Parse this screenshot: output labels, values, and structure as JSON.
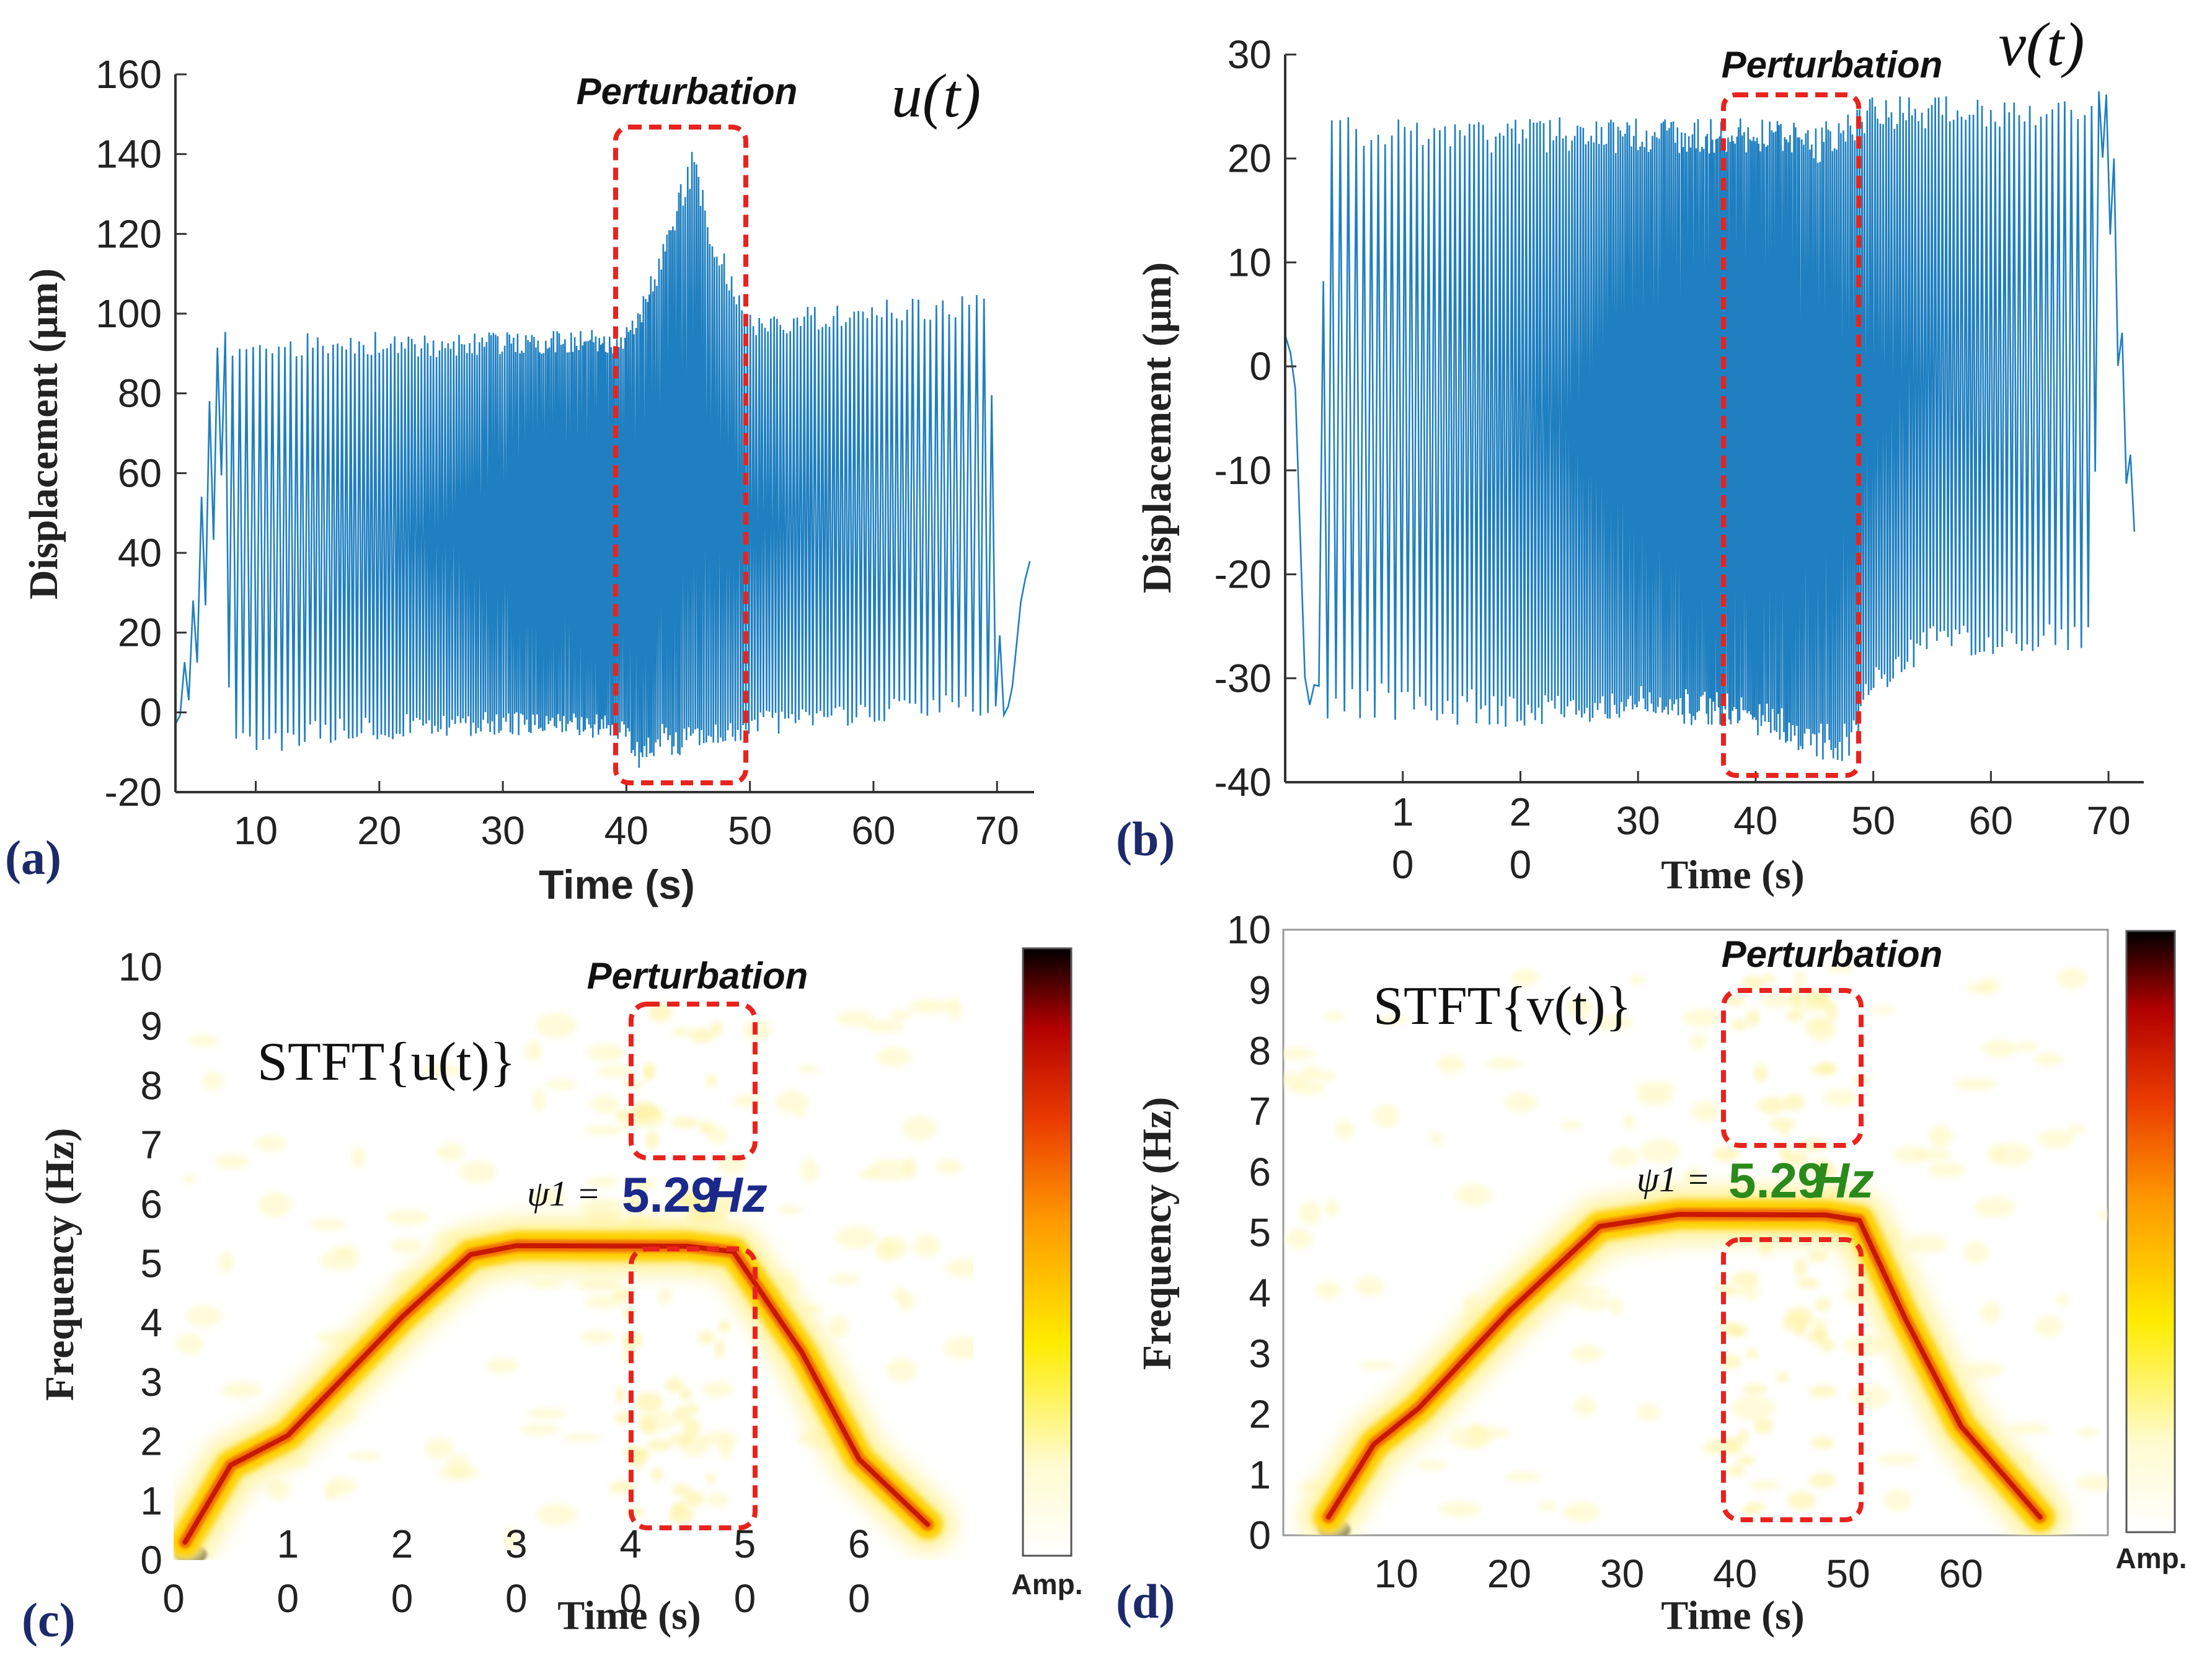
{
  "colors": {
    "signal": "#1f7fc0",
    "perturbation_box": "#e8231e",
    "psi_value_c": "#1b2a8a",
    "psi_value_d": "#2a8a1b",
    "panel_label": "#1c2a6b",
    "colormap": [
      "#ffffff",
      "#fffde0",
      "#ffff40",
      "#ffd400",
      "#ff7a00",
      "#e62a00",
      "#a00000",
      "#000000"
    ]
  },
  "panels": {
    "a": {
      "label": "(a)",
      "function_label": "u(t)",
      "perturbation_label": "Perturbation",
      "xlabel": "Time (s)",
      "ylabel": "Displacement (μm)",
      "xticks": [
        "10",
        "20",
        "30",
        "40",
        "50",
        "60",
        "70"
      ],
      "yticks": [
        "160",
        "140",
        "120",
        "100",
        "80",
        "60",
        "40",
        "20",
        "0",
        "-20"
      ]
    },
    "b": {
      "label": "(b)",
      "function_label": "v(t)",
      "perturbation_label": "Perturbation",
      "xlabel": "Time (s)",
      "ylabel": "Displacement (μm)",
      "xticks": [
        "10",
        "20",
        "30",
        "40",
        "50",
        "60",
        "70"
      ],
      "yticks": [
        "30",
        "20",
        "10",
        "0",
        "-10",
        "-20",
        "-30",
        "-40"
      ]
    },
    "c": {
      "label": "(c)",
      "stft_label": "STFT{u(t)}",
      "perturbation_label": "Perturbation",
      "psi_symbol": "ψ1 =",
      "psi_value": "5.29",
      "psi_unit": "Hz",
      "xlabel": "Time (s)",
      "ylabel": "Frequency (Hz)",
      "colorbar_label": "Amp.",
      "xticks": [
        "0",
        "10",
        "20",
        "30",
        "40",
        "50",
        "60"
      ],
      "yticks": [
        "10",
        "9",
        "8",
        "7",
        "6",
        "5",
        "4",
        "3",
        "2",
        "1",
        "0"
      ]
    },
    "d": {
      "label": "(d)",
      "stft_label": "STFT{v(t)}",
      "perturbation_label": "Perturbation",
      "psi_symbol": "ψ1 =",
      "psi_value": "5.29",
      "psi_unit": "Hz",
      "xlabel": "Time (s)",
      "ylabel": "Frequency (Hz)",
      "colorbar_label": "Amp.",
      "xticks": [
        "10",
        "20",
        "30",
        "40",
        "50",
        "60"
      ],
      "yticks": [
        "10",
        "9",
        "8",
        "7",
        "6",
        "5",
        "4",
        "3",
        "2",
        "1",
        "0"
      ]
    }
  },
  "chart_data": [
    {
      "id": "a",
      "type": "line",
      "title": "u(t)",
      "xlabel": "Time (s)",
      "ylabel": "Displacement (μm)",
      "xlim": [
        3.5,
        73
      ],
      "ylim": [
        -20,
        160
      ],
      "annotation": "Perturbation",
      "perturbation_window": {
        "x": [
          40,
          49
        ],
        "y": [
          -17,
          148
        ]
      },
      "series": [
        {
          "name": "u(t)",
          "envelope": {
            "t": [
              3.5,
              5,
              6.5,
              7.3,
              8,
              15,
              25,
              35,
              39.5,
              41,
              43,
              44.5,
              45.5,
              47,
              49,
              50,
              55,
              60,
              65,
              69.3,
              70.2,
              71,
              72,
              73
            ],
            "upper": [
              -3,
              30,
              90,
              98,
              92,
              96,
              95,
              96,
              96,
              102,
              118,
              135,
              142,
              122,
              108,
              100,
              102,
              104,
              104,
              106,
              20,
              -1,
              30,
              42
            ],
            "lower": [
              -3,
              5,
              40,
              60,
              -12,
              -8,
              -6,
              -6,
              -7,
              -14,
              -10,
              -12,
              -10,
              -8,
              -9,
              -6,
              -5,
              -3,
              -2,
              -1,
              -1,
              -1,
              30,
              42
            ]
          }
        }
      ]
    },
    {
      "id": "b",
      "type": "line",
      "title": "v(t)",
      "xlabel": "Time (s)",
      "ylabel": "Displacement (μm)",
      "xlim": [
        0,
        73
      ],
      "ylim": [
        -40,
        30
      ],
      "annotation": "Perturbation",
      "perturbation_window": {
        "x": [
          38.5,
          49
        ],
        "y": [
          -39,
          26.5
        ]
      },
      "series": [
        {
          "name": "v(t)",
          "envelope": {
            "t": [
              0,
              0.8,
              1.8,
              2.6,
              3.5,
              10,
              20,
              30,
              38,
              42,
              45,
              48,
              50,
              55,
              60,
              65,
              68.5,
              69.5,
              70.3,
              71.3,
              72.5
            ],
            "upper": [
              3,
              0,
              -34,
              -30,
              25,
              24,
              24,
              24,
              24,
              24,
              23,
              25,
              26,
              26,
              26,
              26,
              27,
              28,
              24,
              0,
              -18
            ],
            "lower": [
              3,
              0,
              -34,
              -30,
              -34,
              -34,
              -35,
              -34,
              -35,
              -36,
              -38,
              -38,
              -32,
              -28,
              -28,
              -28,
              -28,
              20,
              10,
              -10,
              -18
            ]
          }
        }
      ]
    },
    {
      "id": "c",
      "type": "heatmap",
      "title": "STFT{u(t)}",
      "xlabel": "Time (s)",
      "ylabel": "Frequency (Hz)",
      "xlim": [
        0,
        70
      ],
      "ylim": [
        0,
        10
      ],
      "colorbar_label": "Amp.",
      "annotation": "Perturbation",
      "perturbation_windows": [
        {
          "x": [
            38.5,
            48.5
          ],
          "y": [
            0.45,
            5.1
          ]
        },
        {
          "x": [
            38.5,
            48.5
          ],
          "y": [
            6.75,
            9.6
          ]
        }
      ],
      "ridge": {
        "t": [
          1,
          5,
          10,
          20,
          26,
          30,
          45,
          49,
          55,
          60,
          66
        ],
        "f": [
          0.3,
          1.6,
          2.1,
          4.1,
          5.15,
          5.3,
          5.29,
          5.2,
          3.5,
          1.7,
          0.6
        ]
      },
      "dc_band": {
        "t": [
          0,
          67
        ],
        "f": 0.1
      },
      "peak": {
        "t": 1.5,
        "f": 0.1
      },
      "psi_1_hz": 5.29
    },
    {
      "id": "d",
      "type": "heatmap",
      "title": "STFT{v(t)}",
      "xlabel": "Time (s)",
      "ylabel": "Frequency (Hz)",
      "xlim": [
        0,
        73
      ],
      "ylim": [
        0,
        10
      ],
      "colorbar_label": "Amp.",
      "annotation": "Perturbation",
      "perturbation_windows": [
        {
          "x": [
            38.5,
            49
          ],
          "y": [
            0.25,
            4.8
          ]
        },
        {
          "x": [
            38.5,
            49
          ],
          "y": [
            6.45,
            9.1
          ]
        }
      ],
      "ridge": {
        "t": [
          4,
          8,
          12,
          20,
          28,
          35,
          48,
          51,
          55,
          60,
          67
        ],
        "f": [
          0.3,
          1.5,
          2.1,
          3.7,
          5.1,
          5.3,
          5.29,
          5.2,
          3.6,
          1.8,
          0.3
        ]
      },
      "dc_band": {
        "t": [
          0,
          70
        ],
        "f": 0.1
      },
      "peak": {
        "t": 4.5,
        "f": 0.1
      },
      "psi_1_hz": 5.29
    }
  ]
}
